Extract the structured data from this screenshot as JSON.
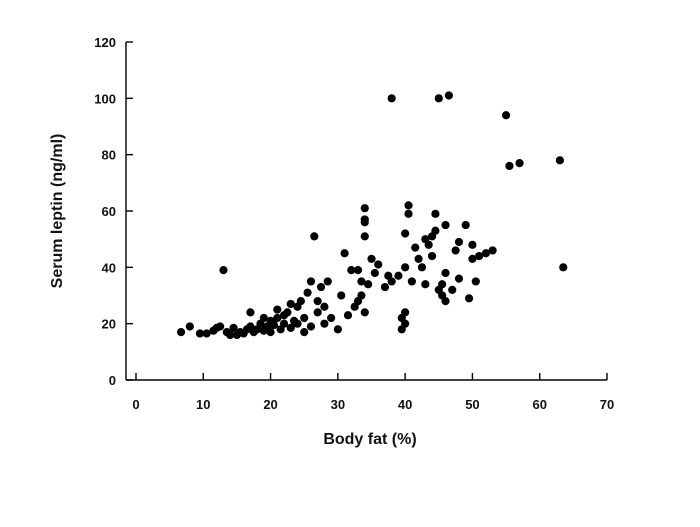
{
  "chart_data": {
    "type": "scatter",
    "title": "",
    "xlabel": "Body fat (%)",
    "ylabel": "Serum leptin (ng/ml)",
    "xlim": [
      0,
      70
    ],
    "ylim": [
      0,
      120
    ],
    "x_ticks": [
      0,
      10,
      20,
      30,
      40,
      50,
      60,
      70
    ],
    "y_ticks": [
      0,
      20,
      40,
      60,
      80,
      100,
      120
    ],
    "grid": false,
    "legend": "none",
    "marker_color": "#000000",
    "axis_color": "#000000",
    "series": [
      {
        "points": [
          [
            6.7,
            17
          ],
          [
            8,
            19
          ],
          [
            9.5,
            16.5
          ],
          [
            10.5,
            16.5
          ],
          [
            11.5,
            17.5
          ],
          [
            12,
            18.5
          ],
          [
            12.5,
            19
          ],
          [
            13,
            39
          ],
          [
            13.5,
            17
          ],
          [
            14,
            16
          ],
          [
            14.5,
            18.5
          ],
          [
            15,
            16
          ],
          [
            15.5,
            17
          ],
          [
            16,
            16.5
          ],
          [
            16.5,
            18
          ],
          [
            17,
            24
          ],
          [
            17,
            19
          ],
          [
            17.5,
            17
          ],
          [
            18,
            18
          ],
          [
            18.5,
            20
          ],
          [
            19,
            17.5
          ],
          [
            19,
            22
          ],
          [
            19.5,
            19
          ],
          [
            20,
            17
          ],
          [
            20,
            21
          ],
          [
            20.5,
            19.5
          ],
          [
            21,
            22
          ],
          [
            21,
            25
          ],
          [
            21.5,
            18
          ],
          [
            22,
            20
          ],
          [
            22,
            23
          ],
          [
            22.5,
            24
          ],
          [
            23,
            18.5
          ],
          [
            23,
            27
          ],
          [
            23.5,
            21
          ],
          [
            24,
            20
          ],
          [
            24,
            26
          ],
          [
            24.5,
            28
          ],
          [
            25,
            22
          ],
          [
            25,
            17
          ],
          [
            25.5,
            31
          ],
          [
            26,
            35
          ],
          [
            26,
            19
          ],
          [
            26.5,
            51
          ],
          [
            27,
            24
          ],
          [
            27,
            28
          ],
          [
            27.5,
            33
          ],
          [
            28,
            20
          ],
          [
            28,
            26
          ],
          [
            28.5,
            35
          ],
          [
            29,
            22
          ],
          [
            30,
            18
          ],
          [
            30.5,
            30
          ],
          [
            31,
            45
          ],
          [
            31.5,
            23
          ],
          [
            32,
            39
          ],
          [
            32.5,
            26
          ],
          [
            33,
            28
          ],
          [
            33,
            39
          ],
          [
            33.5,
            30
          ],
          [
            33.5,
            35
          ],
          [
            34,
            24
          ],
          [
            34,
            51
          ],
          [
            34,
            56
          ],
          [
            34,
            57
          ],
          [
            34,
            61
          ],
          [
            34.5,
            34
          ],
          [
            35,
            43
          ],
          [
            35.5,
            38
          ],
          [
            36,
            41
          ],
          [
            37,
            33
          ],
          [
            37.5,
            37
          ],
          [
            38,
            35
          ],
          [
            38,
            100
          ],
          [
            39,
            37
          ],
          [
            39.5,
            18
          ],
          [
            39.5,
            22
          ],
          [
            40,
            20
          ],
          [
            40,
            24
          ],
          [
            40,
            40
          ],
          [
            40,
            52
          ],
          [
            40.5,
            59
          ],
          [
            40.5,
            62
          ],
          [
            41,
            35
          ],
          [
            41.5,
            47
          ],
          [
            42,
            43
          ],
          [
            42.5,
            40
          ],
          [
            43,
            50
          ],
          [
            43,
            34
          ],
          [
            43.5,
            48
          ],
          [
            44,
            51
          ],
          [
            44,
            44
          ],
          [
            44.5,
            59
          ],
          [
            44.5,
            53
          ],
          [
            45,
            100
          ],
          [
            45,
            32
          ],
          [
            45.5,
            30
          ],
          [
            45.5,
            34
          ],
          [
            46,
            38
          ],
          [
            46,
            28
          ],
          [
            46,
            55
          ],
          [
            46.5,
            101
          ],
          [
            47,
            32
          ],
          [
            47.5,
            46
          ],
          [
            48,
            36
          ],
          [
            48,
            49
          ],
          [
            49,
            55
          ],
          [
            49.5,
            29
          ],
          [
            50,
            48
          ],
          [
            50,
            43
          ],
          [
            50.5,
            35
          ],
          [
            51,
            44
          ],
          [
            52,
            45
          ],
          [
            53,
            46
          ],
          [
            55,
            94
          ],
          [
            55.5,
            76
          ],
          [
            57,
            77
          ],
          [
            63,
            78
          ],
          [
            63.5,
            40
          ]
        ]
      }
    ]
  }
}
